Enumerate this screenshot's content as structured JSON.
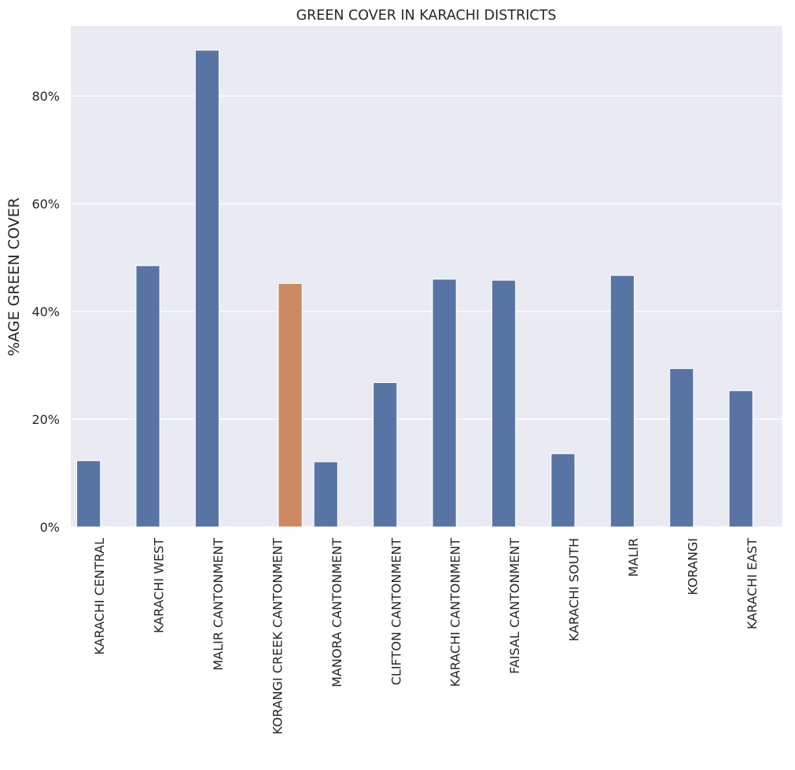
{
  "chart_data": {
    "type": "bar",
    "title": "GREEN COVER IN KARACHI DISTRICTS",
    "xlabel": "",
    "ylabel": "%AGE GREEN COVER",
    "categories": [
      "KARACHI CENTRAL",
      "KARACHI WEST",
      "MALIR CANTONMENT",
      "KORANGI CREEK CANTONMENT",
      "MANORA CANTONMENT",
      "CLIFTON CANTONMENT",
      "KARACHI CANTONMENT",
      "FAISAL CANTONMENT",
      "KARACHI SOUTH",
      "MALIR",
      "KORANGI",
      "KARACHI EAST"
    ],
    "series": [
      {
        "values": [
          12.3,
          48.5,
          88.5,
          null,
          12.1,
          26.8,
          46.0,
          45.8,
          13.6,
          46.7,
          29.4,
          25.3
        ],
        "color": "#5874a4"
      },
      {
        "values": [
          null,
          null,
          null,
          45.2,
          null,
          null,
          null,
          null,
          null,
          null,
          null,
          null
        ],
        "color": "#cc8963"
      }
    ],
    "yticks": [
      "0%",
      "20%",
      "40%",
      "60%",
      "80%"
    ],
    "ytick_values": [
      0,
      20,
      40,
      60,
      80
    ],
    "ylim": [
      0,
      93
    ],
    "grid": true,
    "background_color": "#eaeaf2",
    "grid_color": "#ffffff"
  }
}
